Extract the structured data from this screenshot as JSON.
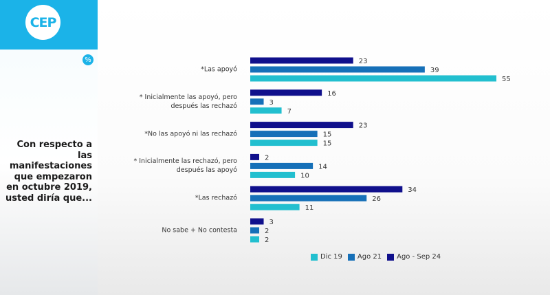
{
  "logo": {
    "text": "CEP"
  },
  "percent_badge": "%",
  "question": "Con respecto a las manifestaciones que empezaron en octubre 2019, usted diría que...",
  "chart_data": {
    "type": "bar",
    "orientation": "horizontal",
    "categories": [
      "*Las apoyó",
      "* Inicialmente las apoyó, pero después las rechazó",
      "*No las apoyó ni las rechazó",
      "* Inicialmente las rechazó, pero después las apoyó",
      "*Las rechazó",
      "No sabe + No contesta"
    ],
    "category_lines": [
      [
        "*Las apoyó"
      ],
      [
        "* Inicialmente las apoyó, pero",
        "después las rechazó"
      ],
      [
        "*No las apoyó ni las rechazó"
      ],
      [
        "* Inicialmente las rechazó, pero",
        "después las apoyó"
      ],
      [
        "*Las rechazó"
      ],
      [
        "No sabe + No contesta"
      ]
    ],
    "series": [
      {
        "name": "Ago - Sep 24",
        "color": "#10108c",
        "values": [
          23,
          16,
          23,
          2,
          34,
          3
        ]
      },
      {
        "name": "Ago 21",
        "color": "#1670b8",
        "values": [
          39,
          3,
          15,
          14,
          26,
          2
        ]
      },
      {
        "name": "Dic 19",
        "color": "#22bfcf",
        "values": [
          55,
          7,
          15,
          10,
          11,
          2
        ]
      }
    ],
    "legend_order": [
      "Dic 19",
      "Ago 21",
      "Ago - Sep 24"
    ],
    "legend_position": "bottom",
    "data_labels": true,
    "grid": false,
    "xlim": [
      0,
      55
    ]
  }
}
